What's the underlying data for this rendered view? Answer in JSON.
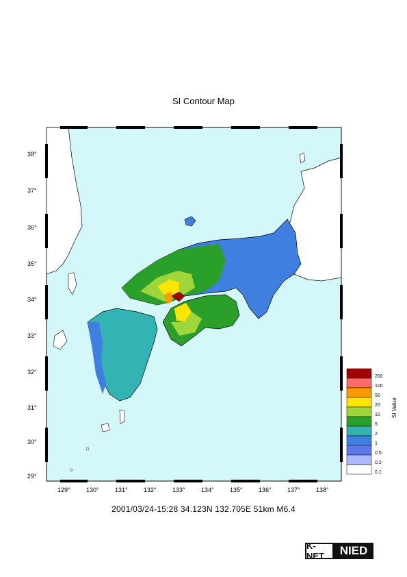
{
  "title": "SI Contour Map",
  "caption": "2001/03/24-15:28 34.123N 132.705E 51km M6.4",
  "axes": {
    "lat_labels": [
      "38°",
      "37°",
      "36°",
      "35°",
      "34°",
      "33°",
      "32°",
      "31°",
      "30°",
      "29°"
    ],
    "lon_labels": [
      "129°",
      "130°",
      "131°",
      "132°",
      "133°",
      "134°",
      "135°",
      "136°",
      "137°",
      "138°"
    ]
  },
  "legend": {
    "title": "SI Value",
    "levels": [
      "200",
      "100",
      "50",
      "20",
      "10",
      "5",
      "2",
      "1",
      "0.5",
      "0.2",
      "0.1"
    ],
    "colors": [
      "#a30000",
      "#ff6a6a",
      "#ff9a00",
      "#ffe600",
      "#9fd63a",
      "#2aa02a",
      "#33b3b3",
      "#3f7fe0",
      "#5d78e8",
      "#a9b8ff",
      "#ffffff"
    ]
  },
  "colors": {
    "sea": "#d4f7f9",
    "land": "#ffffff"
  },
  "logo": {
    "left": "K-NET",
    "right": "NIED"
  }
}
